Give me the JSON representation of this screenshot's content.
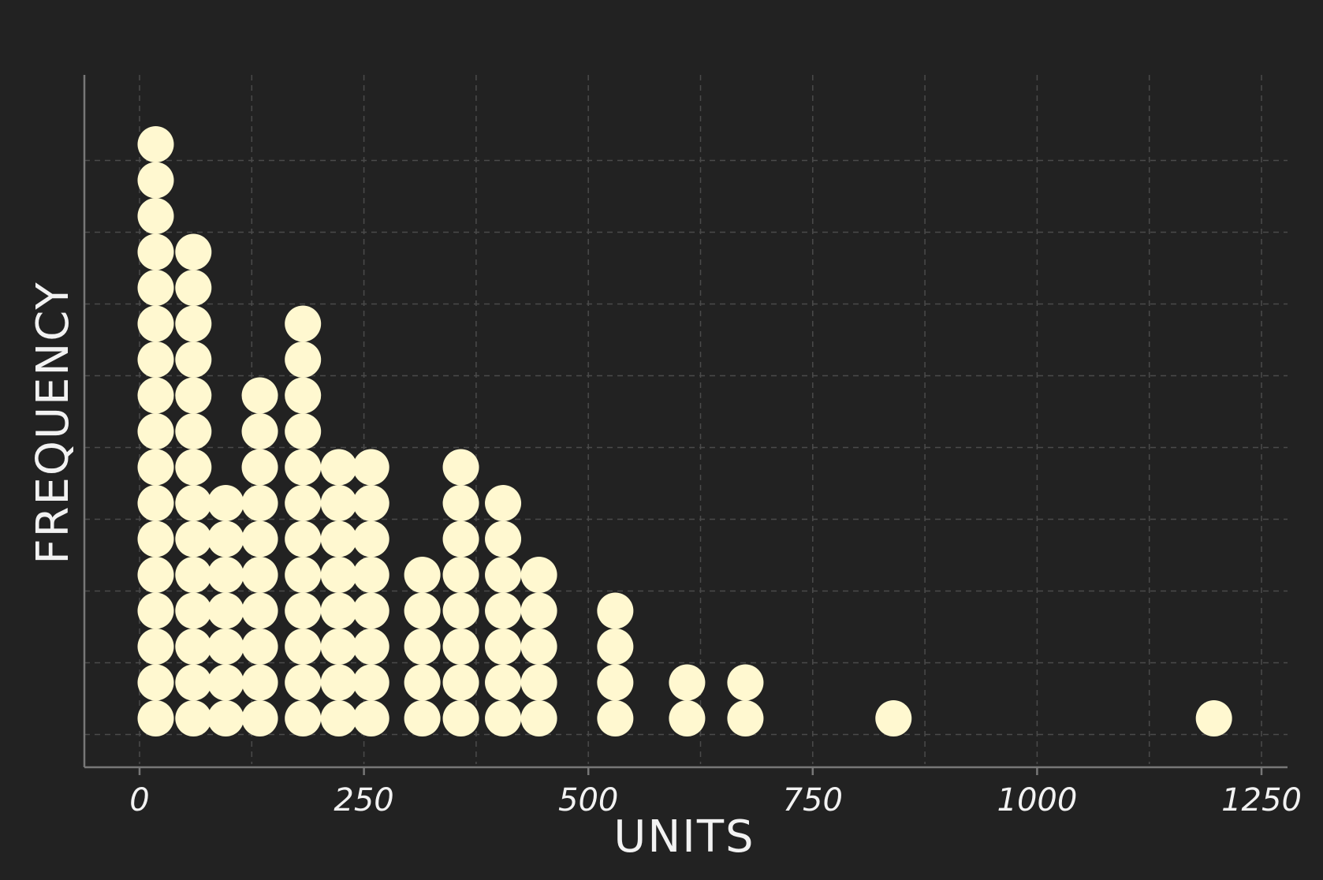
{
  "chart_data": {
    "type": "scatter",
    "subtype": "dot-plot (stacked counts per bin)",
    "title": "",
    "xlabel": "UNITS",
    "ylabel": "FREQUENCY",
    "xlim": [
      -60,
      1260
    ],
    "x_ticks": [
      0,
      250,
      500,
      750,
      1000,
      1250
    ],
    "x_tick_labels": [
      "0",
      "250",
      "500",
      "750",
      "1000",
      "1250"
    ],
    "ylim": [
      0,
      17
    ],
    "grid": true,
    "legend": "none",
    "dot_color": "#fff8d0",
    "background_color": "#222222",
    "stacks": [
      {
        "x": 18,
        "count": 17
      },
      {
        "x": 60,
        "count": 14
      },
      {
        "x": 96,
        "count": 7
      },
      {
        "x": 134,
        "count": 10
      },
      {
        "x": 182,
        "count": 12
      },
      {
        "x": 222,
        "count": 8
      },
      {
        "x": 258,
        "count": 8
      },
      {
        "x": 315,
        "count": 5
      },
      {
        "x": 358,
        "count": 8
      },
      {
        "x": 405,
        "count": 7
      },
      {
        "x": 445,
        "count": 5
      },
      {
        "x": 530,
        "count": 4
      },
      {
        "x": 610,
        "count": 2
      },
      {
        "x": 675,
        "count": 2
      },
      {
        "x": 840,
        "count": 1
      },
      {
        "x": 1197,
        "count": 1
      }
    ]
  }
}
